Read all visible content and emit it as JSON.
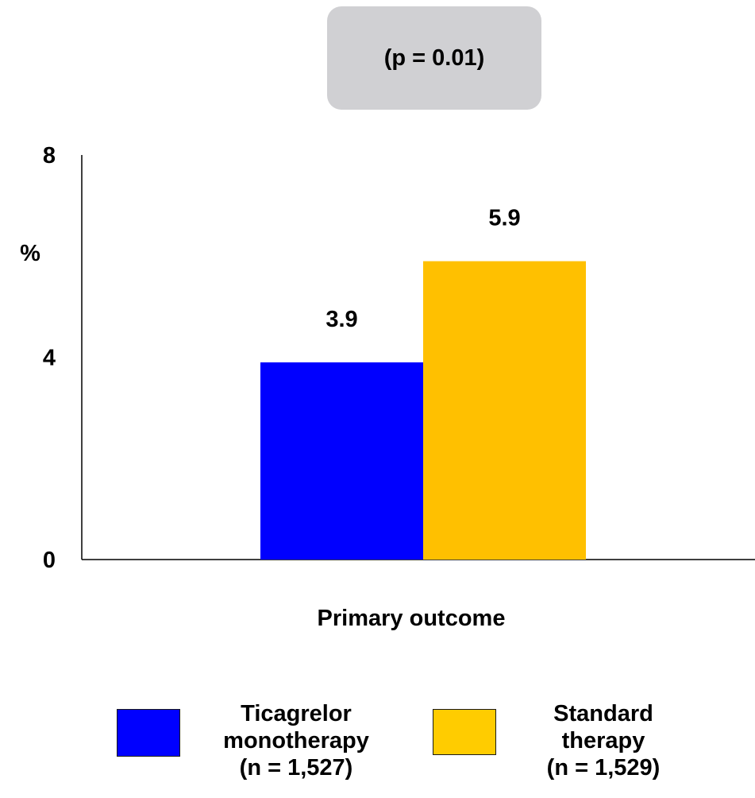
{
  "annotation": {
    "pvalue": "(p = 0.01)"
  },
  "chart_data": {
    "type": "bar",
    "categories": [
      "Primary outcome"
    ],
    "series": [
      {
        "name": "Ticagrelor monotherapy (n = 1,527)",
        "values": [
          3.9
        ],
        "color": "#0000ff",
        "label": "3.9"
      },
      {
        "name": "Standard therapy (n = 1,529)",
        "values": [
          5.9
        ],
        "color": "#ffc000",
        "label": "5.9"
      }
    ],
    "title": "",
    "xlabel": "Primary outcome",
    "ylabel": "%",
    "ylim": [
      0,
      8
    ],
    "yticks": [
      "0",
      "4",
      "8"
    ],
    "grid": false,
    "legend_position": "bottom"
  },
  "legend": [
    {
      "lines": [
        "Ticagrelor",
        "monotherapy",
        "(n = 1,527)"
      ],
      "color": "#0000ff"
    },
    {
      "lines": [
        "Standard",
        "therapy",
        "(n = 1,529)"
      ],
      "color": "#ffc000"
    }
  ]
}
